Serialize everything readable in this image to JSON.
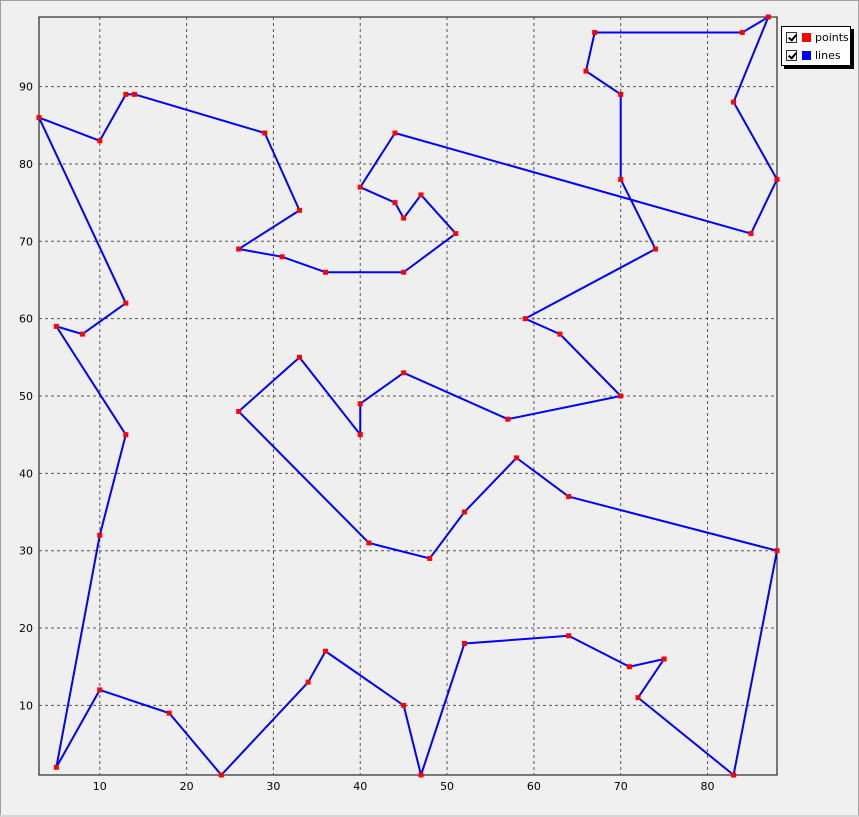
{
  "chart_data": {
    "type": "line",
    "title": "",
    "xlabel": "",
    "ylabel": "",
    "xlim": [
      3,
      88
    ],
    "ylim": [
      1,
      99
    ],
    "x_ticks": [
      10,
      20,
      30,
      40,
      50,
      60,
      70,
      80
    ],
    "y_ticks": [
      10,
      20,
      30,
      40,
      50,
      60,
      70,
      80,
      90
    ],
    "x_tick_labels": [
      "10",
      "20",
      "30",
      "40",
      "50",
      "60",
      "70",
      "80"
    ],
    "y_tick_labels": [
      "10",
      "20",
      "30",
      "40",
      "50",
      "60",
      "70",
      "80",
      "90"
    ],
    "grid": true,
    "legend_position": "top-right",
    "series": [
      {
        "name": "points",
        "color": "#ff0000",
        "marker": "square"
      },
      {
        "name": "lines",
        "color": "#0000ff"
      }
    ],
    "path": [
      [
        87,
        99
      ],
      [
        84,
        97
      ],
      [
        67,
        97
      ],
      [
        66,
        92
      ],
      [
        70,
        89
      ],
      [
        70,
        78
      ],
      [
        74,
        69
      ],
      [
        59,
        60
      ],
      [
        63,
        58
      ],
      [
        70,
        50
      ],
      [
        57,
        47
      ],
      [
        45,
        53
      ],
      [
        40,
        49
      ],
      [
        40,
        45
      ],
      [
        33,
        55
      ],
      [
        26,
        48
      ],
      [
        41,
        31
      ],
      [
        48,
        29
      ],
      [
        52,
        35
      ],
      [
        58,
        42
      ],
      [
        64,
        37
      ],
      [
        88,
        30
      ],
      [
        83,
        1
      ],
      [
        72,
        11
      ],
      [
        75,
        16
      ],
      [
        71,
        15
      ],
      [
        64,
        19
      ],
      [
        52,
        18
      ],
      [
        47,
        1
      ],
      [
        45,
        10
      ],
      [
        36,
        17
      ],
      [
        34,
        13
      ],
      [
        24,
        1
      ],
      [
        18,
        9
      ],
      [
        10,
        12
      ],
      [
        5,
        2
      ],
      [
        10,
        32
      ],
      [
        13,
        45
      ],
      [
        5,
        59
      ],
      [
        8,
        58
      ],
      [
        13,
        62
      ],
      [
        3,
        86
      ],
      [
        10,
        83
      ],
      [
        13,
        89
      ],
      [
        14,
        89
      ],
      [
        29,
        84
      ],
      [
        33,
        74
      ],
      [
        26,
        69
      ],
      [
        31,
        68
      ],
      [
        36,
        66
      ],
      [
        45,
        66
      ],
      [
        51,
        71
      ],
      [
        47,
        76
      ],
      [
        45,
        73
      ],
      [
        44,
        75
      ],
      [
        40,
        77
      ],
      [
        44,
        84
      ],
      [
        85,
        71
      ],
      [
        88,
        78
      ],
      [
        83,
        88
      ],
      [
        87,
        99
      ]
    ]
  },
  "legend": {
    "points_label": "points",
    "lines_label": "lines",
    "points_color": "#ff0000",
    "lines_color": "#0000ff"
  }
}
